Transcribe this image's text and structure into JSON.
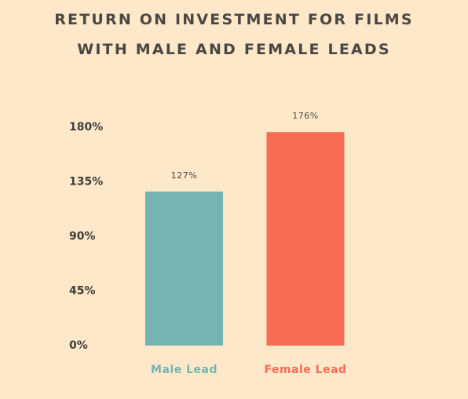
{
  "chart_data": {
    "type": "bar",
    "title": "RETURN ON INVESTMENT FOR FILMS WITH MALE AND FEMALE LEADS",
    "categories": [
      "Male Lead",
      "Female Lead"
    ],
    "values": [
      127,
      176
    ],
    "value_labels": [
      "127%",
      "176%"
    ],
    "colors": [
      "#74b5b4",
      "#f86c55"
    ],
    "ylim": [
      0,
      180
    ],
    "yticks": [
      {
        "value": 0,
        "label": "0%"
      },
      {
        "value": 45,
        "label": "45%"
      },
      {
        "value": 90,
        "label": "90%"
      },
      {
        "value": 135,
        "label": "135%"
      },
      {
        "value": 180,
        "label": "180%"
      }
    ],
    "grid": false
  }
}
